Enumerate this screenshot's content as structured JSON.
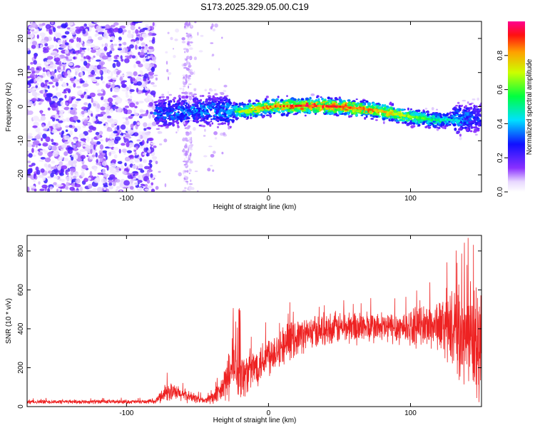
{
  "title": "S173.2025.329.05.00.C19",
  "chart_data": [
    {
      "type": "heatmap",
      "name": "spectrogram",
      "xlabel": "Height of straight line (km)",
      "ylabel": "Frequency (Hz)",
      "xlim": [
        -170,
        150
      ],
      "ylim": [
        -25,
        25
      ],
      "xticks": [
        -100,
        0,
        100
      ],
      "yticks": [
        -20,
        -10,
        0,
        10,
        20
      ],
      "colorbar": {
        "label": "Normalized spectral amplitude",
        "range": [
          0.0,
          1.0
        ],
        "ticks": [
          0.0,
          0.2,
          0.4,
          0.6,
          0.8
        ]
      },
      "noise_region_x": [
        -170,
        -80
      ],
      "sparse_region_x": [
        -80,
        -30
      ],
      "ridge": {
        "x_start": -80,
        "x_end": 150,
        "center_freq": [
          {
            "x": -80,
            "y": -2
          },
          {
            "x": -40,
            "y": -1
          },
          {
            "x": -20,
            "y": -1.5
          },
          {
            "x": 0,
            "y": 0
          },
          {
            "x": 25,
            "y": 0.3
          },
          {
            "x": 50,
            "y": 0
          },
          {
            "x": 75,
            "y": -1
          },
          {
            "x": 100,
            "y": -3
          },
          {
            "x": 120,
            "y": -4
          },
          {
            "x": 150,
            "y": -3
          }
        ],
        "peak_amplitude": [
          {
            "x": -80,
            "y": 0.35
          },
          {
            "x": -30,
            "y": 0.4
          },
          {
            "x": -20,
            "y": 0.7
          },
          {
            "x": 0,
            "y": 0.85
          },
          {
            "x": 25,
            "y": 0.95
          },
          {
            "x": 60,
            "y": 0.9
          },
          {
            "x": 85,
            "y": 0.8
          },
          {
            "x": 110,
            "y": 0.6
          },
          {
            "x": 130,
            "y": 0.45
          },
          {
            "x": 150,
            "y": 0.3
          }
        ]
      }
    },
    {
      "type": "line",
      "name": "snr",
      "xlabel": "Height of straight line (km)",
      "ylabel": "SNR (10 * v/v)",
      "xlim": [
        -170,
        150
      ],
      "ylim": [
        0,
        880
      ],
      "xticks": [
        -100,
        0,
        100
      ],
      "yticks": [
        0,
        200,
        400,
        600,
        800
      ],
      "series": [
        {
          "name": "SNR",
          "color": "#ee2222",
          "envelope": [
            {
              "x": -170,
              "mean": 25,
              "spread": 10
            },
            {
              "x": -80,
              "mean": 25,
              "spread": 10
            },
            {
              "x": -72,
              "mean": 80,
              "spread": 50
            },
            {
              "x": -60,
              "mean": 60,
              "spread": 35
            },
            {
              "x": -45,
              "mean": 30,
              "spread": 15
            },
            {
              "x": -35,
              "mean": 60,
              "spread": 50
            },
            {
              "x": -25,
              "mean": 200,
              "spread": 150
            },
            {
              "x": -20,
              "mean": 150,
              "spread": 120
            },
            {
              "x": -10,
              "mean": 200,
              "spread": 100
            },
            {
              "x": 0,
              "mean": 270,
              "spread": 110
            },
            {
              "x": 20,
              "mean": 360,
              "spread": 90
            },
            {
              "x": 40,
              "mean": 400,
              "spread": 80
            },
            {
              "x": 60,
              "mean": 410,
              "spread": 85
            },
            {
              "x": 80,
              "mean": 405,
              "spread": 80
            },
            {
              "x": 100,
              "mean": 410,
              "spread": 90
            },
            {
              "x": 120,
              "mean": 420,
              "spread": 130
            },
            {
              "x": 135,
              "mean": 380,
              "spread": 230
            },
            {
              "x": 145,
              "mean": 320,
              "spread": 300
            },
            {
              "x": 150,
              "mean": 300,
              "spread": 300
            }
          ]
        }
      ]
    }
  ]
}
